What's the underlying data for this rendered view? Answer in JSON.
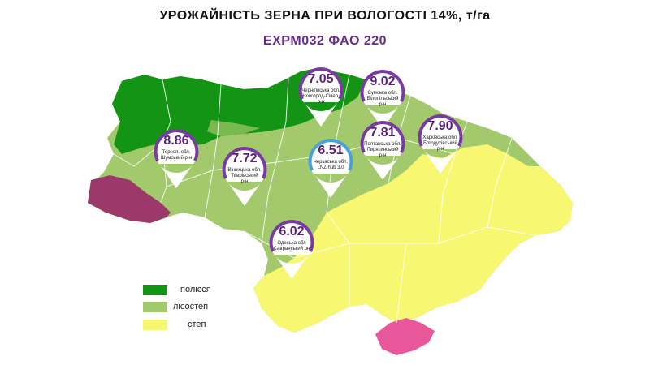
{
  "title": "УРОЖАЙНІСТЬ ЗЕРНА ПРИ ВОЛОГОСТІ 14%, т/га",
  "subtitle": "EXPM032 ФАО 220",
  "colors": {
    "polissia": "#149414",
    "lisostep": "#a3c96d",
    "step": "#f7f772",
    "west": "#9b3a6a",
    "crimea": "#e8579a",
    "pin_ring": "#7b3aa3",
    "pin_ring_highlight": "#4aa0d8"
  },
  "legend": [
    {
      "label": "полісся",
      "color": "#149414"
    },
    {
      "label": "лісостеп",
      "color": "#a3c96d"
    },
    {
      "label": "степ",
      "color": "#f7f772"
    }
  ],
  "markers": [
    {
      "value": "8.86",
      "line1": "Терноп. обл.",
      "line2": "Шумський р-н",
      "line3": ""
    },
    {
      "value": "7.72",
      "line1": "Вінницька обл.",
      "line2": "Тиврівський",
      "line3": "р-н"
    },
    {
      "value": "7.05",
      "line1": "Чернігівська обл.",
      "line2": "Новгород-Сівер.",
      "line3": "р-н"
    },
    {
      "value": "9.02",
      "line1": "Сумська обл.",
      "line2": "Білопільський",
      "line3": "р-н"
    },
    {
      "value": "6.51",
      "line1": "Черкаська обл.",
      "line2": "LNZ hub 3.0",
      "line3": ""
    },
    {
      "value": "7.81",
      "line1": "Полтавська обл.",
      "line2": "Пирятинський",
      "line3": "р-н"
    },
    {
      "value": "7.90",
      "line1": "Харківська обл.",
      "line2": "Богодухівський",
      "line3": "р-н"
    },
    {
      "value": "6.02",
      "line1": "Одеська обл",
      "line2": "Савранський рн",
      "line3": ""
    }
  ]
}
